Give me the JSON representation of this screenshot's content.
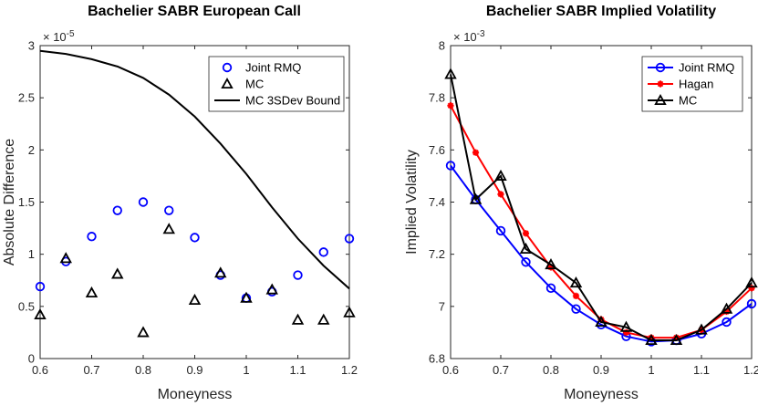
{
  "chart_data": [
    {
      "type": "scatter",
      "title": "Bachelier SABR European Call",
      "xlabel": "Moneyness",
      "ylabel": "Absolute Difference",
      "exponent_label": "× 10",
      "exponent_power": "-5",
      "xlim": [
        0.6,
        1.2
      ],
      "ylim": [
        0,
        3
      ],
      "xticks": [
        0.6,
        0.7,
        0.8,
        0.9,
        1.0,
        1.1,
        1.2
      ],
      "xtick_labels": [
        "0.6",
        "0.7",
        "0.8",
        "0.9",
        "1",
        "1.1",
        "1.2"
      ],
      "yticks": [
        0,
        0.5,
        1,
        1.5,
        2,
        2.5,
        3
      ],
      "ytick_labels": [
        "0",
        "0.5",
        "1",
        "1.5",
        "2",
        "2.5",
        "3"
      ],
      "legend_position": "top-right",
      "x": [
        0.6,
        0.65,
        0.7,
        0.75,
        0.8,
        0.85,
        0.9,
        0.95,
        1.0,
        1.05,
        1.1,
        1.15,
        1.2
      ],
      "series": [
        {
          "name": "Joint RMQ",
          "style": "circle",
          "color": "#0000ff",
          "values": [
            0.69,
            0.93,
            1.17,
            1.42,
            1.5,
            1.42,
            1.16,
            0.8,
            0.58,
            0.64,
            0.8,
            1.02,
            1.15
          ]
        },
        {
          "name": "MC",
          "style": "triangle",
          "color": "#000000",
          "values": [
            0.42,
            0.96,
            0.63,
            0.81,
            0.25,
            1.24,
            0.56,
            0.82,
            0.58,
            0.66,
            0.37,
            0.37,
            0.44
          ]
        },
        {
          "name": "MC 3SDev Bound",
          "style": "line",
          "color": "#000000",
          "values": [
            2.95,
            2.92,
            2.87,
            2.8,
            2.69,
            2.53,
            2.32,
            2.06,
            1.77,
            1.45,
            1.15,
            0.89,
            0.67
          ]
        }
      ]
    },
    {
      "type": "line",
      "title": "Bachelier SABR Implied Volatility",
      "xlabel": "Moneyness",
      "ylabel": "Implied Volatility",
      "exponent_label": "× 10",
      "exponent_power": "-3",
      "xlim": [
        0.6,
        1.2
      ],
      "ylim": [
        6.8,
        8
      ],
      "xticks": [
        0.6,
        0.7,
        0.8,
        0.9,
        1.0,
        1.1,
        1.2
      ],
      "xtick_labels": [
        "0.6",
        "0.7",
        "0.8",
        "0.9",
        "1",
        "1.1",
        "1.2"
      ],
      "yticks": [
        6.8,
        7,
        7.2,
        7.4,
        7.6,
        7.8,
        8
      ],
      "ytick_labels": [
        "6.8",
        "7",
        "7.2",
        "7.4",
        "7.6",
        "7.8",
        "8"
      ],
      "legend_position": "top-right",
      "x": [
        0.6,
        0.65,
        0.7,
        0.75,
        0.8,
        0.85,
        0.9,
        0.95,
        1.0,
        1.05,
        1.1,
        1.15,
        1.2
      ],
      "series": [
        {
          "name": "Joint RMQ",
          "style": "line-circle",
          "color": "#0000ff",
          "values": [
            7.54,
            7.41,
            7.29,
            7.17,
            7.07,
            6.99,
            6.93,
            6.885,
            6.865,
            6.87,
            6.895,
            6.94,
            7.01
          ]
        },
        {
          "name": "Hagan",
          "style": "line-star",
          "color": "#ff0000",
          "values": [
            7.77,
            7.59,
            7.43,
            7.28,
            7.15,
            7.04,
            6.95,
            6.9,
            6.88,
            6.88,
            6.91,
            6.98,
            7.07
          ]
        },
        {
          "name": "MC",
          "style": "line-triangle",
          "color": "#000000",
          "values": [
            7.89,
            7.41,
            7.5,
            7.22,
            7.16,
            7.09,
            6.94,
            6.92,
            6.87,
            6.87,
            6.91,
            6.99,
            7.09
          ]
        }
      ]
    }
  ]
}
